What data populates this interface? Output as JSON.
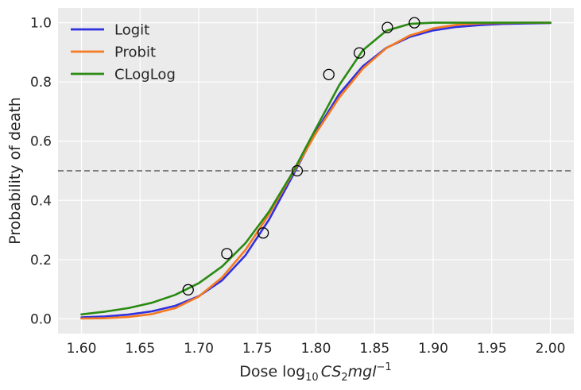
{
  "chart_data": {
    "type": "line",
    "title": "",
    "xlabel": "Dose log",
    "xlabel_sub": "10",
    "xlabel_expr": "CS",
    "xlabel_expr_sub": "2",
    "xlabel_unit": "mgl",
    "xlabel_unit_sup": "−1",
    "ylabel": "Probability of death",
    "xlim": [
      1.58,
      2.02
    ],
    "ylim": [
      -0.05,
      1.05
    ],
    "xticks": [
      1.6,
      1.65,
      1.7,
      1.75,
      1.8,
      1.85,
      1.9,
      1.95,
      2.0
    ],
    "xtick_labels": [
      "1.60",
      "1.65",
      "1.70",
      "1.75",
      "1.80",
      "1.85",
      "1.90",
      "1.95",
      "2.00"
    ],
    "yticks": [
      0.0,
      0.2,
      0.4,
      0.6,
      0.8,
      1.0
    ],
    "ytick_labels": [
      "0.0",
      "0.2",
      "0.4",
      "0.6",
      "0.8",
      "1.0"
    ],
    "grid": true,
    "legend_position": "top-left",
    "reference_line": {
      "y": 0.5,
      "style": "dashed",
      "color": "#808080"
    },
    "observed_points": {
      "x": [
        1.691,
        1.724,
        1.755,
        1.784,
        1.811,
        1.837,
        1.861,
        1.884
      ],
      "y": [
        0.098,
        0.22,
        0.29,
        0.5,
        0.825,
        0.898,
        0.984,
        1.0
      ]
    },
    "series": [
      {
        "name": "Logit",
        "color": "#3030e0",
        "x": [
          1.6,
          1.62,
          1.64,
          1.66,
          1.68,
          1.7,
          1.72,
          1.74,
          1.76,
          1.78,
          1.8,
          1.82,
          1.84,
          1.86,
          1.88,
          1.9,
          1.92,
          1.94,
          1.96,
          1.98,
          2.0
        ],
        "y": [
          0.005,
          0.008,
          0.014,
          0.025,
          0.044,
          0.076,
          0.13,
          0.215,
          0.335,
          0.482,
          0.632,
          0.76,
          0.853,
          0.915,
          0.952,
          0.974,
          0.986,
          0.992,
          0.996,
          0.998,
          0.999
        ]
      },
      {
        "name": "Probit",
        "color": "#f57a20",
        "x": [
          1.6,
          1.62,
          1.64,
          1.66,
          1.68,
          1.7,
          1.72,
          1.74,
          1.76,
          1.78,
          1.8,
          1.82,
          1.84,
          1.86,
          1.88,
          1.9,
          1.92,
          1.94,
          1.96,
          1.98,
          2.0
        ],
        "y": [
          0.001,
          0.002,
          0.006,
          0.016,
          0.036,
          0.075,
          0.14,
          0.233,
          0.353,
          0.49,
          0.627,
          0.748,
          0.845,
          0.914,
          0.957,
          0.981,
          0.993,
          0.998,
          0.999,
          1.0,
          1.0
        ]
      },
      {
        "name": "CLogLog",
        "color": "#2a8a12",
        "x": [
          1.6,
          1.62,
          1.64,
          1.66,
          1.68,
          1.7,
          1.72,
          1.74,
          1.76,
          1.78,
          1.8,
          1.82,
          1.84,
          1.86,
          1.88,
          1.9,
          1.92,
          1.94,
          1.96,
          1.98,
          2.0
        ],
        "y": [
          0.015,
          0.024,
          0.036,
          0.054,
          0.081,
          0.12,
          0.177,
          0.256,
          0.362,
          0.493,
          0.643,
          0.79,
          0.907,
          0.973,
          0.996,
          1.0,
          1.0,
          1.0,
          1.0,
          1.0,
          1.0
        ]
      }
    ]
  }
}
